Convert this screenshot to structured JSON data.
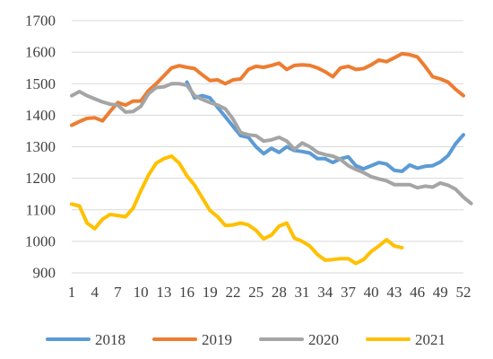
{
  "chart_data": {
    "type": "line",
    "title": "",
    "xlabel": "",
    "ylabel": "",
    "grid": true,
    "legend_position": "bottom",
    "ylim": [
      900,
      1700
    ],
    "yticks": [
      900,
      1000,
      1100,
      1200,
      1300,
      1400,
      1500,
      1600,
      1700
    ],
    "xlim": [
      1,
      52
    ],
    "xticks": [
      1,
      4,
      7,
      10,
      13,
      16,
      19,
      22,
      25,
      28,
      31,
      34,
      37,
      40,
      43,
      46,
      49,
      52
    ],
    "series": [
      {
        "name": "2018",
        "color": "#5B9BD5",
        "points": [
          [
            16,
            1505
          ],
          [
            17,
            1455
          ],
          [
            18,
            1462
          ],
          [
            19,
            1455
          ],
          [
            20,
            1425
          ],
          [
            21,
            1395
          ],
          [
            22,
            1365
          ],
          [
            23,
            1335
          ],
          [
            24,
            1330
          ],
          [
            25,
            1300
          ],
          [
            26,
            1278
          ],
          [
            27,
            1295
          ],
          [
            28,
            1282
          ],
          [
            29,
            1300
          ],
          [
            30,
            1288
          ],
          [
            31,
            1285
          ],
          [
            32,
            1280
          ],
          [
            33,
            1262
          ],
          [
            34,
            1262
          ],
          [
            35,
            1250
          ],
          [
            36,
            1262
          ],
          [
            37,
            1268
          ],
          [
            38,
            1240
          ],
          [
            39,
            1230
          ],
          [
            40,
            1240
          ],
          [
            41,
            1250
          ],
          [
            42,
            1245
          ],
          [
            43,
            1225
          ],
          [
            44,
            1222
          ],
          [
            45,
            1242
          ],
          [
            46,
            1232
          ],
          [
            47,
            1238
          ],
          [
            48,
            1240
          ],
          [
            49,
            1252
          ],
          [
            50,
            1272
          ],
          [
            51,
            1310
          ],
          [
            52,
            1338
          ]
        ]
      },
      {
        "name": "2019",
        "color": "#ED7D31",
        "points": [
          [
            1,
            1368
          ],
          [
            2,
            1380
          ],
          [
            3,
            1390
          ],
          [
            4,
            1392
          ],
          [
            5,
            1382
          ],
          [
            6,
            1412
          ],
          [
            7,
            1440
          ],
          [
            8,
            1432
          ],
          [
            9,
            1445
          ],
          [
            10,
            1445
          ],
          [
            11,
            1478
          ],
          [
            12,
            1500
          ],
          [
            13,
            1525
          ],
          [
            14,
            1550
          ],
          [
            15,
            1557
          ],
          [
            16,
            1552
          ],
          [
            17,
            1548
          ],
          [
            18,
            1528
          ],
          [
            19,
            1510
          ],
          [
            20,
            1512
          ],
          [
            21,
            1500
          ],
          [
            22,
            1512
          ],
          [
            23,
            1515
          ],
          [
            24,
            1545
          ],
          [
            25,
            1555
          ],
          [
            26,
            1552
          ],
          [
            27,
            1558
          ],
          [
            28,
            1565
          ],
          [
            29,
            1545
          ],
          [
            30,
            1558
          ],
          [
            31,
            1560
          ],
          [
            32,
            1558
          ],
          [
            33,
            1550
          ],
          [
            34,
            1538
          ],
          [
            35,
            1522
          ],
          [
            36,
            1550
          ],
          [
            37,
            1555
          ],
          [
            38,
            1545
          ],
          [
            39,
            1548
          ],
          [
            40,
            1560
          ],
          [
            41,
            1575
          ],
          [
            42,
            1570
          ],
          [
            43,
            1582
          ],
          [
            44,
            1595
          ],
          [
            45,
            1592
          ],
          [
            46,
            1585
          ],
          [
            47,
            1555
          ],
          [
            48,
            1522
          ],
          [
            49,
            1515
          ],
          [
            50,
            1505
          ],
          [
            51,
            1482
          ],
          [
            52,
            1462
          ]
        ]
      },
      {
        "name": "2020",
        "color": "#A5A5A5",
        "points": [
          [
            1,
            1462
          ],
          [
            2,
            1475
          ],
          [
            3,
            1462
          ],
          [
            4,
            1452
          ],
          [
            5,
            1442
          ],
          [
            6,
            1435
          ],
          [
            7,
            1432
          ],
          [
            8,
            1410
          ],
          [
            9,
            1412
          ],
          [
            10,
            1428
          ],
          [
            11,
            1468
          ],
          [
            12,
            1488
          ],
          [
            13,
            1490
          ],
          [
            14,
            1500
          ],
          [
            15,
            1500
          ],
          [
            16,
            1495
          ],
          [
            17,
            1462
          ],
          [
            18,
            1450
          ],
          [
            19,
            1440
          ],
          [
            20,
            1432
          ],
          [
            21,
            1420
          ],
          [
            22,
            1388
          ],
          [
            23,
            1345
          ],
          [
            24,
            1338
          ],
          [
            25,
            1335
          ],
          [
            26,
            1318
          ],
          [
            27,
            1322
          ],
          [
            28,
            1330
          ],
          [
            29,
            1318
          ],
          [
            30,
            1292
          ],
          [
            31,
            1312
          ],
          [
            32,
            1300
          ],
          [
            33,
            1282
          ],
          [
            34,
            1275
          ],
          [
            35,
            1270
          ],
          [
            36,
            1260
          ],
          [
            37,
            1240
          ],
          [
            38,
            1228
          ],
          [
            39,
            1218
          ],
          [
            40,
            1205
          ],
          [
            41,
            1198
          ],
          [
            42,
            1192
          ],
          [
            43,
            1180
          ],
          [
            44,
            1180
          ],
          [
            45,
            1180
          ],
          [
            46,
            1170
          ],
          [
            47,
            1175
          ],
          [
            48,
            1172
          ],
          [
            49,
            1185
          ],
          [
            50,
            1178
          ],
          [
            51,
            1165
          ],
          [
            52,
            1140
          ],
          [
            53,
            1120
          ]
        ]
      },
      {
        "name": "2021",
        "color": "#FFC000",
        "points": [
          [
            1,
            1118
          ],
          [
            2,
            1112
          ],
          [
            3,
            1058
          ],
          [
            4,
            1040
          ],
          [
            5,
            1070
          ],
          [
            6,
            1085
          ],
          [
            7,
            1082
          ],
          [
            8,
            1078
          ],
          [
            9,
            1105
          ],
          [
            10,
            1160
          ],
          [
            11,
            1210
          ],
          [
            12,
            1248
          ],
          [
            13,
            1262
          ],
          [
            14,
            1270
          ],
          [
            15,
            1248
          ],
          [
            16,
            1208
          ],
          [
            17,
            1178
          ],
          [
            18,
            1138
          ],
          [
            19,
            1098
          ],
          [
            20,
            1078
          ],
          [
            21,
            1050
          ],
          [
            22,
            1052
          ],
          [
            23,
            1058
          ],
          [
            24,
            1052
          ],
          [
            25,
            1035
          ],
          [
            26,
            1008
          ],
          [
            27,
            1020
          ],
          [
            28,
            1048
          ],
          [
            29,
            1058
          ],
          [
            30,
            1010
          ],
          [
            31,
            1000
          ],
          [
            32,
            985
          ],
          [
            33,
            958
          ],
          [
            34,
            940
          ],
          [
            35,
            942
          ],
          [
            36,
            945
          ],
          [
            37,
            945
          ],
          [
            38,
            930
          ],
          [
            39,
            942
          ],
          [
            40,
            968
          ],
          [
            41,
            985
          ],
          [
            42,
            1005
          ],
          [
            43,
            985
          ],
          [
            44,
            980
          ]
        ]
      }
    ]
  }
}
